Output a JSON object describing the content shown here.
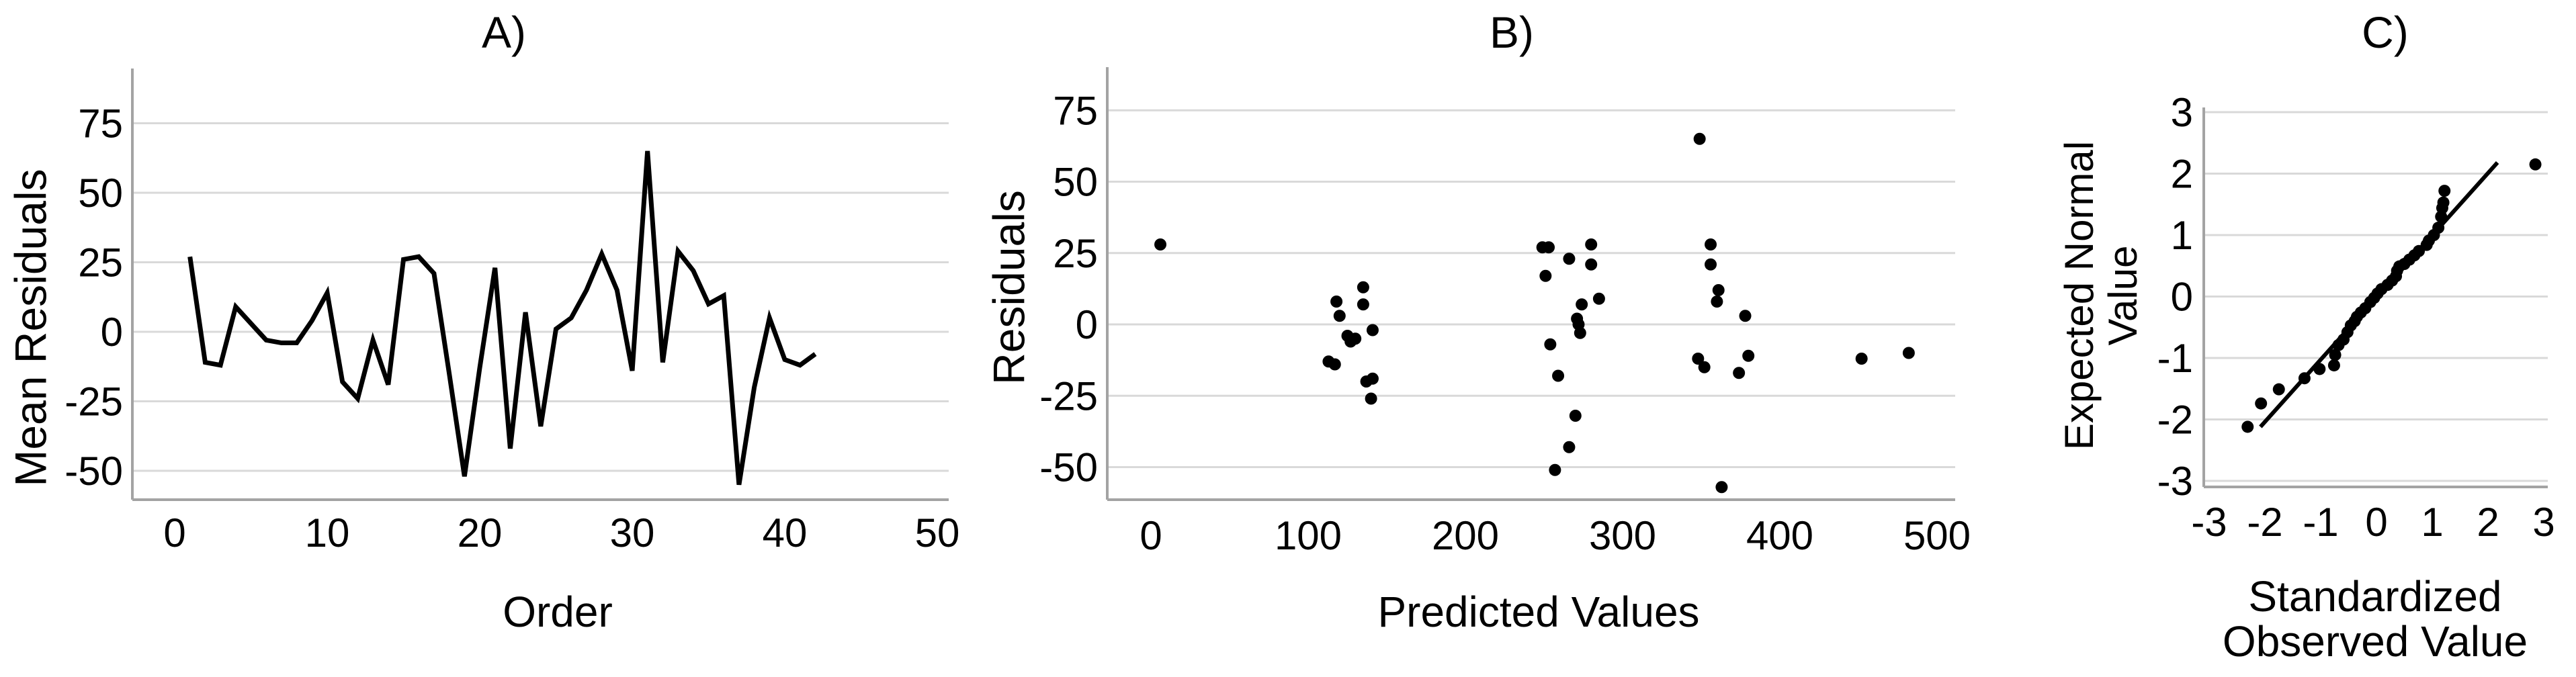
{
  "figure": {
    "background": "#ffffff",
    "ink": "#000000",
    "gridline_color": "#d9d9d9",
    "axis_color": "#a3a3a3"
  },
  "chart_data": [
    {
      "id": "A",
      "type": "line",
      "title": "A)",
      "xlabel": "Order",
      "ylabel": "Mean Residuals",
      "x_ticks": [
        0,
        10,
        20,
        30,
        40,
        50
      ],
      "y_gridlines": [
        75,
        50,
        25,
        0,
        -25,
        -50
      ],
      "xlim": [
        0,
        50
      ],
      "ylim": [
        -60,
        95
      ],
      "grid": true,
      "legend": "none",
      "x_start": 1,
      "x_step": 1,
      "values": [
        27,
        -11,
        -12,
        9,
        3,
        -3,
        -4,
        -4,
        4,
        14,
        -18,
        -24,
        -3,
        -19,
        26,
        27,
        21,
        -15,
        -52,
        -13,
        23,
        -42,
        7,
        -34,
        1,
        5,
        15,
        28,
        15,
        -14,
        65,
        -11,
        29,
        22,
        10,
        13,
        -55,
        -20,
        5,
        -10,
        -12,
        -8
      ]
    },
    {
      "id": "B",
      "type": "scatter",
      "title": "B)",
      "xlabel": "Predicted Values",
      "ylabel": "Residuals",
      "x_ticks": [
        0,
        100,
        200,
        300,
        400,
        500
      ],
      "y_gridlines": [
        75,
        50,
        25,
        0,
        -25,
        -50
      ],
      "xlim": [
        -25,
        510
      ],
      "ylim": [
        -60,
        95
      ],
      "grid": true,
      "legend": "none",
      "points": [
        [
          6,
          28
        ],
        [
          113,
          -13
        ],
        [
          117,
          -14
        ],
        [
          118,
          8
        ],
        [
          120,
          3
        ],
        [
          125,
          -4
        ],
        [
          127,
          -6
        ],
        [
          130,
          -5
        ],
        [
          135,
          13
        ],
        [
          135,
          7
        ],
        [
          137,
          -20
        ],
        [
          141,
          -19
        ],
        [
          140,
          -26
        ],
        [
          141,
          -2
        ],
        [
          249,
          27
        ],
        [
          251,
          17
        ],
        [
          253,
          27
        ],
        [
          254,
          -7
        ],
        [
          257,
          -51
        ],
        [
          259,
          -18
        ],
        [
          266,
          23
        ],
        [
          266,
          -43
        ],
        [
          270,
          -32
        ],
        [
          271,
          2
        ],
        [
          272,
          0
        ],
        [
          273,
          -3
        ],
        [
          274,
          7
        ],
        [
          280,
          28
        ],
        [
          280,
          21
        ],
        [
          285,
          9
        ],
        [
          348,
          -12
        ],
        [
          349,
          65
        ],
        [
          352,
          -15
        ],
        [
          356,
          28
        ],
        [
          356,
          21
        ],
        [
          360,
          8
        ],
        [
          361,
          12
        ],
        [
          363,
          -57
        ],
        [
          374,
          -17
        ],
        [
          378,
          3
        ],
        [
          380,
          -11
        ],
        [
          452,
          -12
        ],
        [
          482,
          -10
        ]
      ]
    },
    {
      "id": "C",
      "type": "scatter",
      "title": "C)",
      "xlabel_lines": [
        "Standardized",
        "Observed Value"
      ],
      "ylabel_lines": [
        "Expected Normal",
        "Value"
      ],
      "x_ticks": [
        -3,
        -2,
        -1,
        0,
        1,
        2,
        3
      ],
      "y_ticks": [
        3,
        2,
        1,
        0,
        -1,
        -2,
        -3
      ],
      "xlim": [
        -3,
        3
      ],
      "ylim": [
        -3,
        3
      ],
      "grid": true,
      "legend": "none",
      "ref_line": {
        "x1": -2.08,
        "y1": -2.12,
        "x2": 2.17,
        "y2": 2.18
      },
      "points": [
        [
          -2.31,
          -2.12
        ],
        [
          -2.07,
          -1.74
        ],
        [
          -1.75,
          -1.51
        ],
        [
          -1.29,
          -1.33
        ],
        [
          -1.02,
          -1.18
        ],
        [
          -0.76,
          -1.12
        ],
        [
          -0.74,
          -0.95
        ],
        [
          -0.68,
          -0.79
        ],
        [
          -0.59,
          -0.7
        ],
        [
          -0.52,
          -0.58
        ],
        [
          -0.46,
          -0.47
        ],
        [
          -0.39,
          -0.4
        ],
        [
          -0.35,
          -0.33
        ],
        [
          -0.28,
          -0.26
        ],
        [
          -0.2,
          -0.19
        ],
        [
          -0.11,
          -0.09
        ],
        [
          -0.04,
          -0.02
        ],
        [
          0.02,
          0.05
        ],
        [
          0.09,
          0.12
        ],
        [
          0.2,
          0.19
        ],
        [
          0.28,
          0.26
        ],
        [
          0.35,
          0.33
        ],
        [
          0.37,
          0.42
        ],
        [
          0.41,
          0.49
        ],
        [
          0.5,
          0.53
        ],
        [
          0.59,
          0.6
        ],
        [
          0.68,
          0.67
        ],
        [
          0.76,
          0.74
        ],
        [
          0.9,
          0.84
        ],
        [
          0.94,
          0.91
        ],
        [
          1.03,
          1.0
        ],
        [
          1.11,
          1.12
        ],
        [
          1.16,
          1.3
        ],
        [
          1.18,
          1.44
        ],
        [
          1.2,
          1.53
        ],
        [
          1.22,
          1.72
        ],
        [
          2.85,
          2.15
        ]
      ]
    }
  ]
}
